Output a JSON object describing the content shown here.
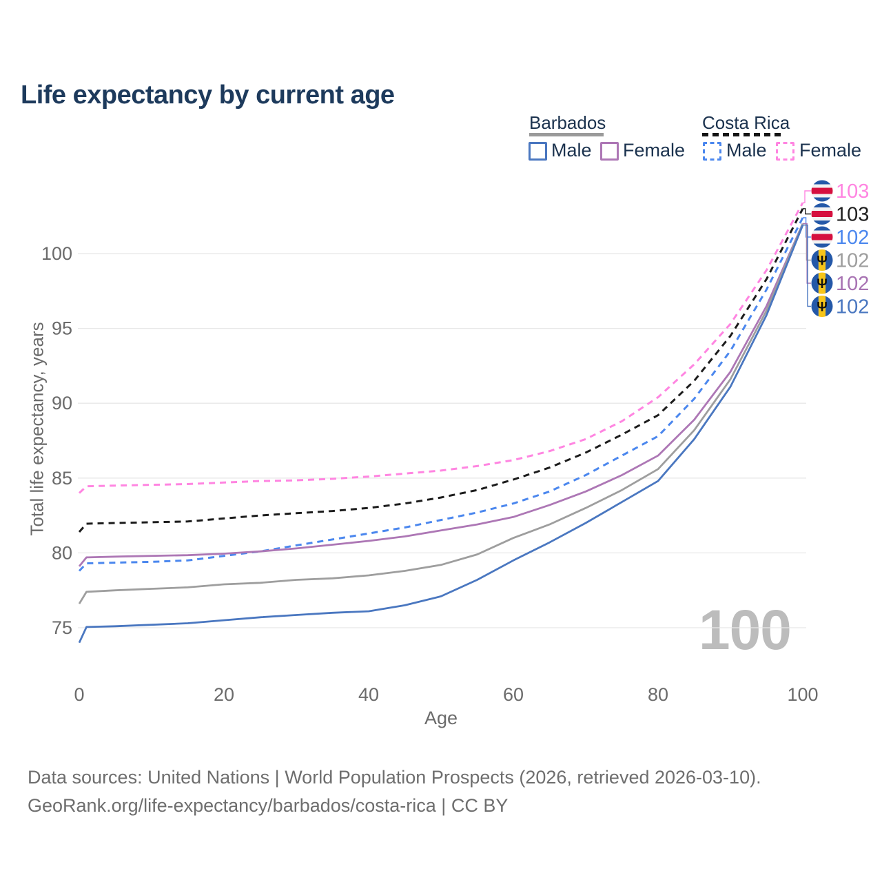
{
  "title": "Life expectancy by current age",
  "legend": {
    "groups": [
      {
        "name": "Barbados",
        "line_style": "solid",
        "underline_color": "#9a9a9a",
        "items": [
          {
            "label": "Male",
            "color": "#4a77c0"
          },
          {
            "label": "Female",
            "color": "#ad77b5"
          }
        ]
      },
      {
        "name": "Costa Rica",
        "line_style": "dashed",
        "underline_color": "#141414",
        "items": [
          {
            "label": "Male",
            "color": "#4b87ee"
          },
          {
            "label": "Female",
            "color": "#ff85e1"
          }
        ]
      }
    ]
  },
  "chart_data": {
    "type": "line",
    "title": "Life expectancy by current age",
    "xlabel": "Age",
    "ylabel": "Total life expectancy, years",
    "xlim": [
      0,
      100
    ],
    "ylim": [
      73,
      105
    ],
    "xticks": [
      0,
      20,
      40,
      60,
      80,
      100
    ],
    "yticks": [
      75,
      80,
      85,
      90,
      95,
      100
    ],
    "grid": "horizontal",
    "legend_position": "top-right",
    "x": [
      0,
      1,
      5,
      10,
      15,
      20,
      25,
      30,
      35,
      40,
      45,
      50,
      55,
      60,
      65,
      70,
      75,
      80,
      85,
      90,
      95,
      100
    ],
    "series": [
      {
        "name": "Costa Rica Female",
        "country": "Costa Rica",
        "sex": "Female",
        "color": "#ff85e1",
        "dash": true,
        "values": [
          84.0,
          84.45,
          84.5,
          84.55,
          84.6,
          84.7,
          84.8,
          84.85,
          84.95,
          85.1,
          85.3,
          85.5,
          85.8,
          86.2,
          86.8,
          87.6,
          88.8,
          90.4,
          92.6,
          95.3,
          98.9,
          103.4
        ]
      },
      {
        "name": "Costa Rica",
        "country": "Costa Rica",
        "sex": "Both",
        "color": "#1c1c1c",
        "dash": true,
        "values": [
          81.4,
          81.95,
          82.0,
          82.05,
          82.1,
          82.3,
          82.5,
          82.65,
          82.8,
          83.0,
          83.3,
          83.7,
          84.2,
          84.9,
          85.7,
          86.7,
          87.9,
          89.2,
          91.5,
          94.5,
          98.3,
          103.0
        ]
      },
      {
        "name": "Costa Rica Male",
        "country": "Costa Rica",
        "sex": "Male",
        "color": "#4b87ee",
        "dash": true,
        "values": [
          78.8,
          79.3,
          79.35,
          79.4,
          79.5,
          79.8,
          80.1,
          80.5,
          80.9,
          81.3,
          81.7,
          82.2,
          82.7,
          83.3,
          84.1,
          85.2,
          86.5,
          87.8,
          90.3,
          93.5,
          97.6,
          102.4
        ]
      },
      {
        "name": "Barbados Female",
        "country": "Barbados",
        "sex": "Female",
        "color": "#ad77b5",
        "dash": false,
        "values": [
          79.1,
          79.7,
          79.75,
          79.8,
          79.85,
          79.95,
          80.1,
          80.3,
          80.55,
          80.8,
          81.1,
          81.5,
          81.9,
          82.4,
          83.2,
          84.1,
          85.2,
          86.5,
          88.9,
          92.1,
          96.5,
          102.0
        ]
      },
      {
        "name": "Barbados",
        "country": "Barbados",
        "sex": "Both",
        "color": "#9e9e9e",
        "dash": false,
        "values": [
          76.6,
          77.4,
          77.5,
          77.6,
          77.7,
          77.9,
          78.0,
          78.2,
          78.3,
          78.5,
          78.8,
          79.2,
          79.9,
          81.0,
          81.9,
          83.0,
          84.2,
          85.6,
          88.2,
          91.6,
          96.2,
          102.0
        ]
      },
      {
        "name": "Barbados Male",
        "country": "Barbados",
        "sex": "Male",
        "color": "#4a77c0",
        "dash": false,
        "values": [
          74.0,
          75.05,
          75.1,
          75.2,
          75.3,
          75.5,
          75.7,
          75.85,
          76.0,
          76.1,
          76.5,
          77.1,
          78.2,
          79.5,
          80.7,
          82.0,
          83.4,
          84.8,
          87.6,
          91.1,
          95.9,
          101.9
        ]
      }
    ],
    "end_labels": [
      {
        "value": "103",
        "series": "Costa Rica Female",
        "flag": "costa-rica",
        "color": "#ff85e1"
      },
      {
        "value": "103",
        "series": "Costa Rica",
        "flag": "costa-rica",
        "color": "#212121"
      },
      {
        "value": "102",
        "series": "Costa Rica Male",
        "flag": "costa-rica",
        "color": "#4b87ee"
      },
      {
        "value": "102",
        "series": "Barbados",
        "flag": "barbados",
        "color": "#9e9e9e"
      },
      {
        "value": "102",
        "series": "Barbados Female",
        "flag": "barbados",
        "color": "#a873b3"
      },
      {
        "value": "102",
        "series": "Barbados Male",
        "flag": "barbados",
        "color": "#4a77c0"
      }
    ],
    "watermark": "100",
    "flag_colors": {
      "costa_rica_blue": "#2458a8",
      "costa_rica_red": "#d5103f",
      "costa_rica_white": "#f2f2f2",
      "barbados_blue": "#2458a8",
      "barbados_gold": "#f7c519",
      "barbados_trident": "#111111"
    }
  },
  "footer": {
    "line1": "Data sources: United Nations | World Population Prospects (2026, retrieved 2026-03-10).",
    "line2": "GeoRank.org/life-expectancy/barbados/costa-rica | CC BY"
  }
}
